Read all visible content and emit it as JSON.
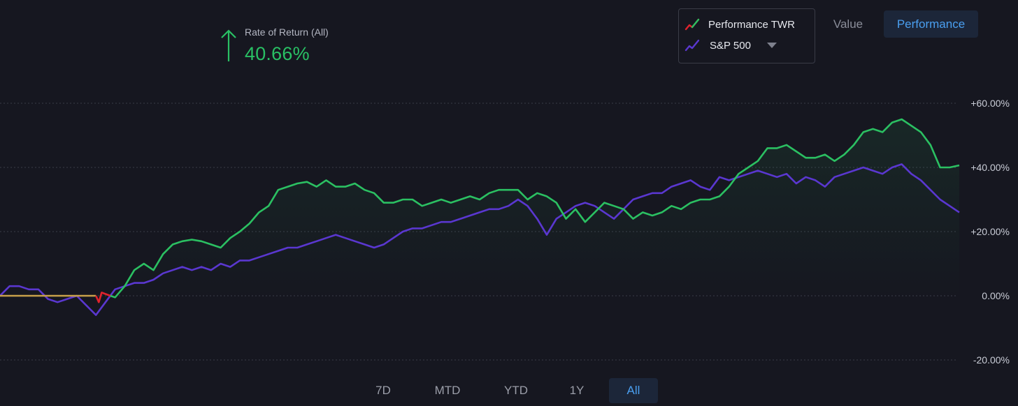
{
  "header": {
    "rate_label": "Rate of Return (All)",
    "rate_value": "40.66%",
    "rate_direction": "up"
  },
  "legend": {
    "items": [
      {
        "label": "Performance TWR",
        "icon": "trend-line-icon"
      },
      {
        "label": "S&P 500",
        "icon": "trend-line-icon"
      }
    ]
  },
  "view_toggle": {
    "value_label": "Value",
    "performance_label": "Performance",
    "selected": "Performance"
  },
  "range_buttons": {
    "items": [
      "7D",
      "MTD",
      "YTD",
      "1Y",
      "All"
    ],
    "selected": "All"
  },
  "colors": {
    "background": "#161720",
    "portfolio_up": "#2bc062",
    "portfolio_down": "#e0232d",
    "benchmark": "#5a37d0",
    "baseline": "#c8a04a",
    "accent": "#4a9ff0",
    "grid": "#3a3c48",
    "tick": "#c9ccd6"
  },
  "chart_data": {
    "type": "line",
    "title": "",
    "xlabel": "",
    "ylabel": "",
    "ylim": [
      -20,
      60
    ],
    "yticks": [
      60,
      40,
      20,
      0,
      -20
    ],
    "ytick_labels": [
      "+60.00%",
      "+40.00%",
      "+20.00%",
      "0.00%",
      "-20.00%"
    ],
    "grid": true,
    "legend_position": "top-right",
    "x_index_range": [
      0,
      100
    ],
    "series": [
      {
        "name": "Performance TWR",
        "x": [
          0,
          4,
          8,
          10,
          10.3,
          10.6,
          11.5,
          12,
          13,
          14,
          15,
          16,
          17,
          18,
          19,
          20,
          21,
          22,
          23,
          24,
          25,
          26,
          27,
          28,
          29,
          30,
          31,
          32,
          33,
          34,
          35,
          36,
          37,
          38,
          39,
          40,
          41,
          42,
          43,
          44,
          45,
          46,
          47,
          48,
          49,
          50,
          51,
          52,
          53,
          54,
          55,
          56,
          57,
          58,
          59,
          60,
          61,
          62,
          63,
          64,
          65,
          66,
          67,
          68,
          69,
          70,
          71,
          72,
          73,
          74,
          75,
          76,
          77,
          78,
          79,
          80,
          81,
          82,
          83,
          84,
          85,
          86,
          87,
          88,
          89,
          90,
          91,
          92,
          93,
          94,
          95,
          96,
          97,
          98,
          99,
          100
        ],
        "y": [
          0,
          0,
          0,
          0,
          -2,
          1,
          0,
          -0.5,
          3,
          8,
          10,
          8,
          13,
          16,
          17,
          17.5,
          17,
          16,
          15,
          18,
          20,
          22.5,
          26,
          28,
          33,
          34,
          35,
          35.5,
          34,
          36,
          34,
          34,
          35,
          33,
          32,
          29,
          29,
          30,
          30,
          28,
          29,
          30,
          29,
          30,
          31,
          30,
          32,
          33,
          33,
          33,
          30,
          32,
          31,
          29,
          24,
          27,
          23,
          26,
          29,
          28,
          27,
          24,
          26,
          25,
          26,
          28,
          27,
          29,
          30,
          30,
          31,
          34,
          38,
          40,
          42,
          46,
          46,
          47,
          45,
          43,
          43,
          44,
          42,
          44,
          47,
          51,
          52,
          51,
          54,
          55,
          53,
          51,
          47,
          40,
          40,
          40.66
        ],
        "colors_by_segment": [
          {
            "from": 0,
            "to": 10,
            "color": "orange-baseline"
          },
          {
            "from": 10,
            "to": 11.5,
            "color": "red"
          },
          {
            "from": 11.5,
            "to": 100,
            "color": "green"
          }
        ]
      },
      {
        "name": "S&P 500",
        "x": [
          0,
          1,
          2,
          3,
          4,
          5,
          6,
          7,
          8,
          9,
          10,
          11,
          12,
          13,
          14,
          15,
          16,
          17,
          18,
          19,
          20,
          21,
          22,
          23,
          24,
          25,
          26,
          27,
          28,
          29,
          30,
          31,
          32,
          33,
          34,
          35,
          36,
          37,
          38,
          39,
          40,
          41,
          42,
          43,
          44,
          45,
          46,
          47,
          48,
          49,
          50,
          51,
          52,
          53,
          54,
          55,
          56,
          57,
          58,
          59,
          60,
          61,
          62,
          63,
          64,
          65,
          66,
          67,
          68,
          69,
          70,
          71,
          72,
          73,
          74,
          75,
          76,
          77,
          78,
          79,
          80,
          81,
          82,
          83,
          84,
          85,
          86,
          87,
          88,
          89,
          90,
          91,
          92,
          93,
          94,
          95,
          96,
          97,
          98,
          99,
          100
        ],
        "y": [
          0,
          3,
          3,
          2,
          2,
          -1,
          -2,
          -1,
          0,
          -3,
          -6,
          -2,
          2,
          3,
          4,
          4,
          5,
          7,
          8,
          9,
          8,
          9,
          8,
          10,
          9,
          11,
          11,
          12,
          13,
          14,
          15,
          15,
          16,
          17,
          18,
          19,
          18,
          17,
          16,
          15,
          16,
          18,
          20,
          21,
          21,
          22,
          23,
          23,
          24,
          25,
          26,
          27,
          27,
          28,
          30,
          28,
          24,
          19,
          24,
          26,
          28,
          29,
          28,
          26,
          24,
          27,
          30,
          31,
          32,
          32,
          34,
          35,
          36,
          34,
          33,
          37,
          36,
          37,
          38,
          39,
          38,
          37,
          38,
          35,
          37,
          36,
          34,
          37,
          38,
          39,
          40,
          39,
          38,
          40,
          41,
          38,
          36,
          33,
          30,
          28,
          26
        ]
      }
    ]
  }
}
